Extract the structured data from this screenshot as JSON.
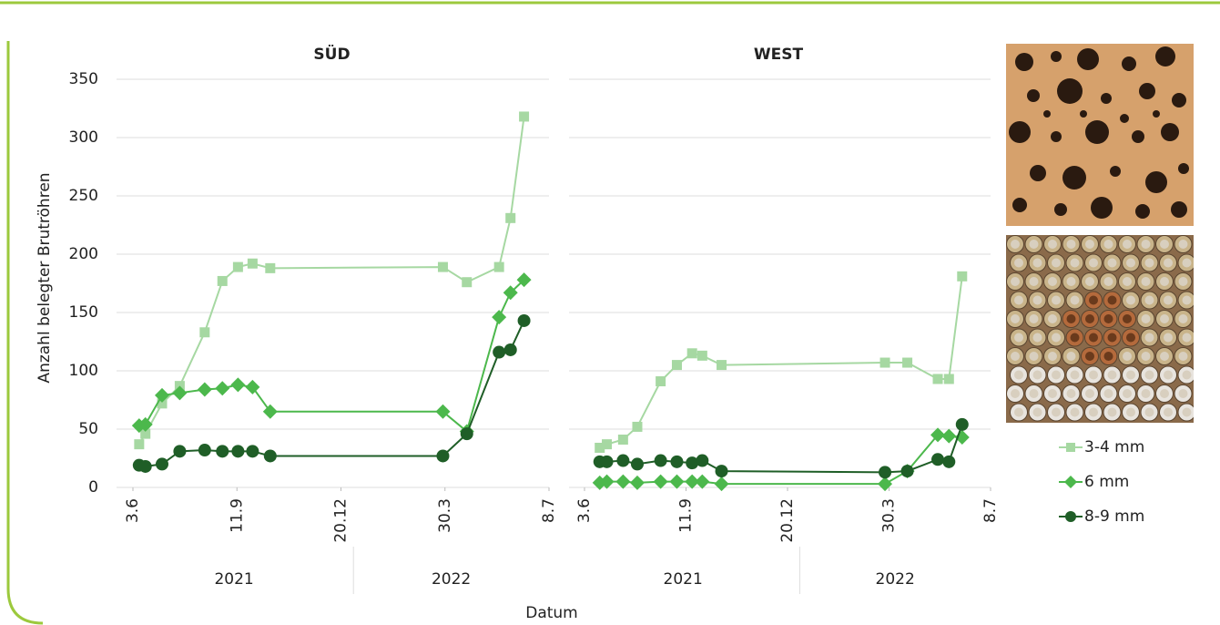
{
  "chart_data": [
    {
      "type": "line",
      "title": "SÜD",
      "ylabel": "Anzahl belegter Brutröhren",
      "xlabel": "Datum",
      "x": [
        "2021-06-09",
        "2021-06-15",
        "2021-07-01",
        "2021-07-18",
        "2021-08-11",
        "2021-08-28",
        "2021-09-12",
        "2021-09-26",
        "2021-10-13",
        "2022-03-28",
        "2022-04-20",
        "2022-05-21",
        "2022-06-01",
        "2022-06-14"
      ],
      "series": [
        {
          "name": "3-4 mm",
          "color": "#a6d8a2",
          "marker": "square",
          "values": [
            37,
            46,
            72,
            87,
            133,
            177,
            189,
            192,
            188,
            189,
            176,
            189,
            231,
            318
          ]
        },
        {
          "name": "6 mm",
          "color": "#4cb84c",
          "marker": "diamond",
          "values": [
            53,
            54,
            79,
            81,
            84,
            85,
            88,
            86,
            65,
            65,
            48,
            146,
            167,
            178
          ]
        },
        {
          "name": "8-9 mm",
          "color": "#1f5e27",
          "marker": "circle",
          "values": [
            19,
            18,
            20,
            31,
            32,
            31,
            31,
            31,
            27,
            27,
            46,
            116,
            118,
            143
          ]
        }
      ],
      "xlim": [
        "2021-06-03",
        "2022-07-08"
      ],
      "xticks": [
        {
          "value": "2021-06-03",
          "label": "3.6"
        },
        {
          "value": "2021-09-11",
          "label": "11.9"
        },
        {
          "value": "2021-12-20",
          "label": "20.12"
        },
        {
          "value": "2022-03-30",
          "label": "30.3"
        },
        {
          "value": "2022-07-08",
          "label": "8.7"
        }
      ],
      "x_groups": [
        "2021",
        "2022"
      ],
      "ylim": [
        0,
        350
      ],
      "yticks": [
        0,
        50,
        100,
        150,
        200,
        250,
        300,
        350
      ],
      "grid": true
    },
    {
      "type": "line",
      "title": "WEST",
      "x": [
        "2021-06-18",
        "2021-06-25",
        "2021-07-11",
        "2021-07-25",
        "2021-08-17",
        "2021-09-02",
        "2021-09-17",
        "2021-09-27",
        "2021-10-16",
        "2022-03-26",
        "2022-04-17",
        "2022-05-17",
        "2022-05-28",
        "2022-06-10"
      ],
      "series": [
        {
          "color": "#a6d8a2",
          "marker": "square",
          "values": [
            34,
            37,
            41,
            52,
            91,
            105,
            115,
            113,
            105,
            107,
            107,
            93,
            93,
            181
          ]
        },
        {
          "color": "#4cb84c",
          "marker": "diamond",
          "values": [
            4,
            5,
            5,
            4,
            5,
            5,
            5,
            5,
            3,
            3,
            14,
            45,
            44,
            43
          ]
        },
        {
          "color": "#1f5e27",
          "marker": "circle",
          "values": [
            22,
            22,
            23,
            20,
            23,
            22,
            21,
            23,
            14,
            13,
            14,
            24,
            22,
            54
          ]
        }
      ],
      "xlim": [
        "2021-06-03",
        "2022-07-08"
      ],
      "xticks": [
        {
          "value": "2021-06-03",
          "label": "3.6"
        },
        {
          "value": "2021-09-11",
          "label": "11.9"
        },
        {
          "value": "2021-12-20",
          "label": "20.12"
        },
        {
          "value": "2022-03-30",
          "label": "30.3"
        },
        {
          "value": "2022-07-08",
          "label": "8.7"
        }
      ],
      "x_groups": [
        "2021",
        "2022"
      ],
      "ylim": [
        0,
        350
      ],
      "grid": true
    }
  ]
}
